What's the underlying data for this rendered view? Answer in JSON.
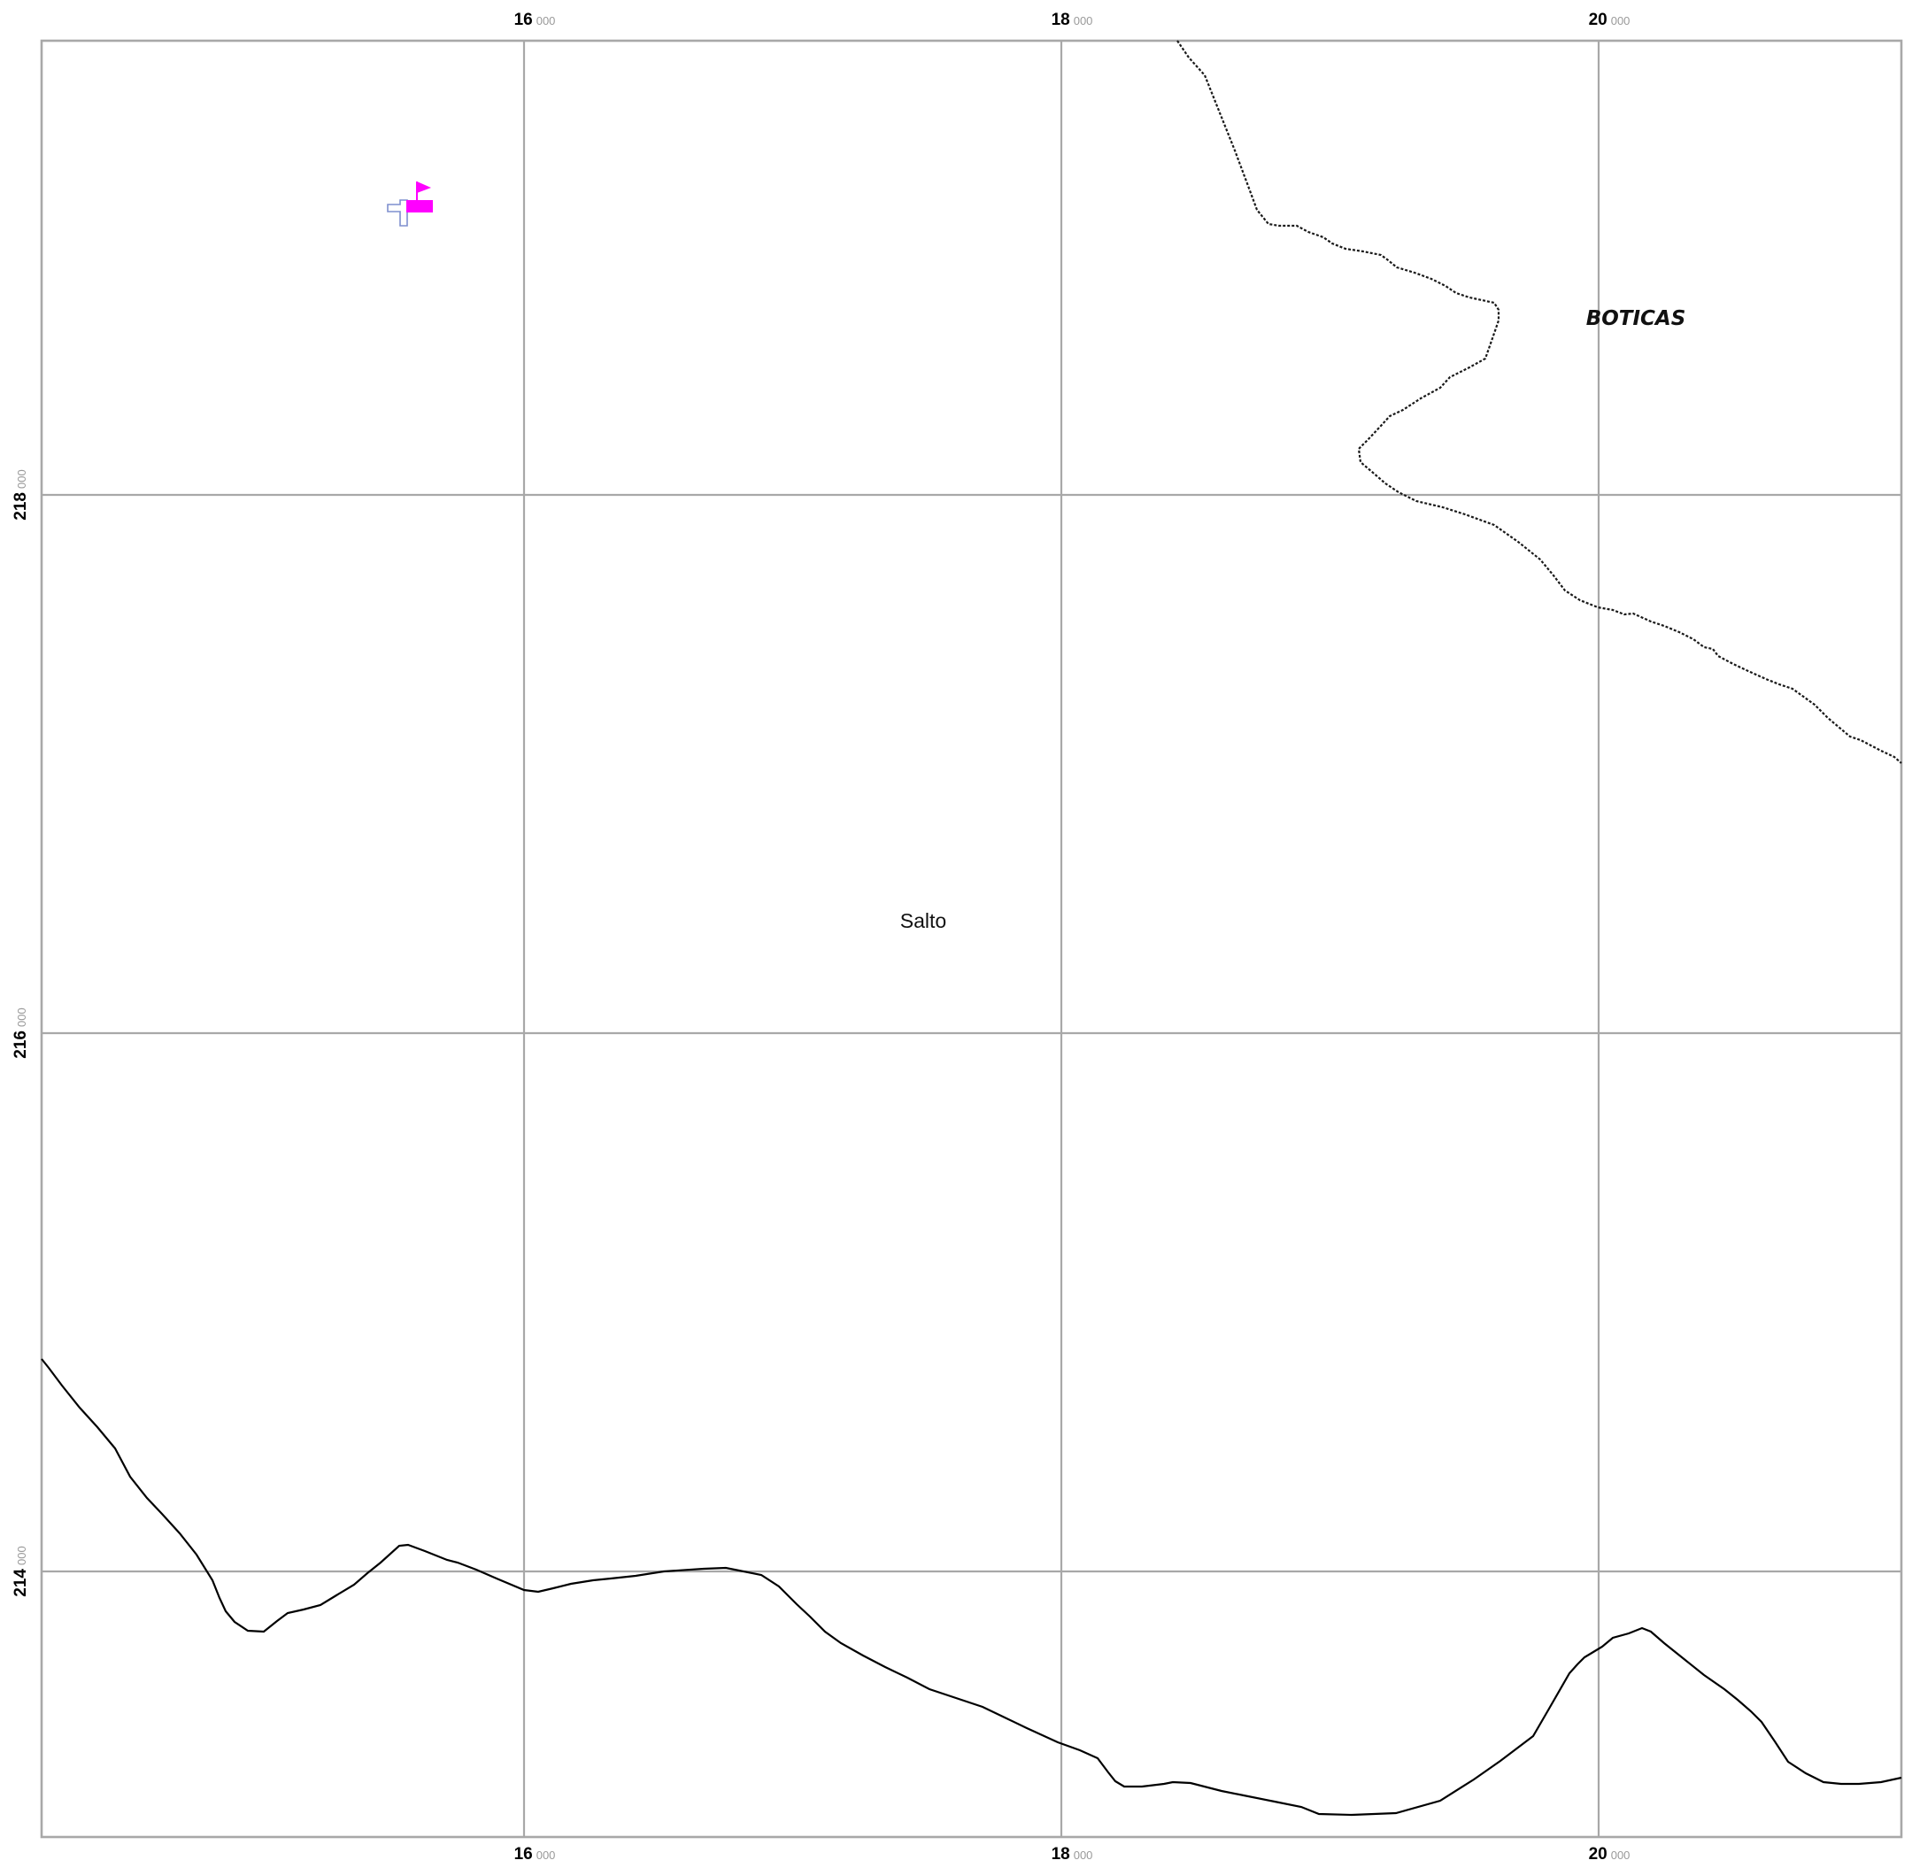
{
  "map": {
    "grid": {
      "x_ticks": [
        {
          "major": "16",
          "minor": "000"
        },
        {
          "major": "18",
          "minor": "000"
        },
        {
          "major": "20",
          "minor": "000"
        }
      ],
      "y_ticks": [
        {
          "major": "218",
          "minor": "000"
        },
        {
          "major": "216",
          "minor": "000"
        },
        {
          "major": "214",
          "minor": "000"
        }
      ]
    },
    "labels": {
      "place": "Salto",
      "municipality": "BOTICAS"
    },
    "symbols": {
      "church_icon": "church-icon",
      "flag_icon": "flag-icon",
      "flag_color": "#ff00ff",
      "church_outline_color": "#7f8fcf"
    },
    "lines": {
      "boundary_style": "dashed",
      "road_style": "solid",
      "line_color": "#000000",
      "grid_color": "#a8a8a8"
    }
  }
}
